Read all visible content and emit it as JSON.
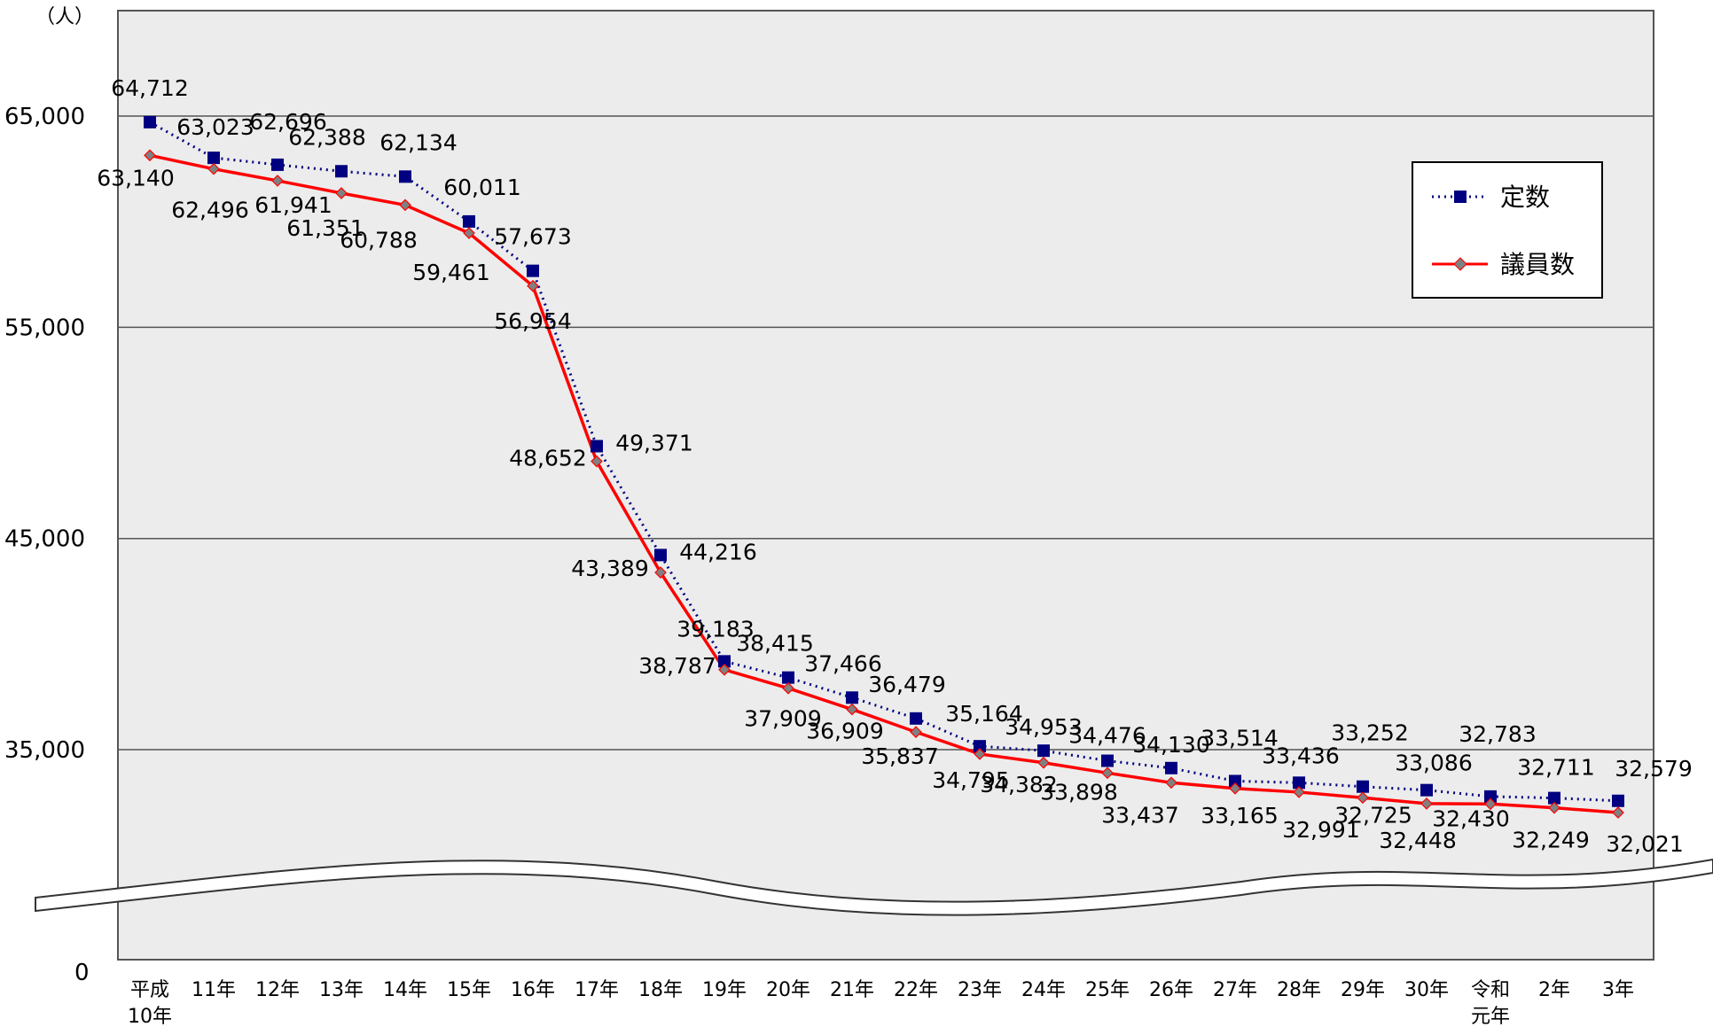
{
  "chart_data": {
    "type": "line",
    "unit_label": "（人）",
    "zero_label": "0",
    "y_ticks": [
      "65,000",
      "55,000",
      "45,000",
      "35,000"
    ],
    "ylim": [
      25000,
      70000
    ],
    "axis_break": true,
    "grid": true,
    "legend_position": "top-right",
    "categories": [
      [
        "平成",
        "10年"
      ],
      [
        "11年"
      ],
      [
        "12年"
      ],
      [
        "13年"
      ],
      [
        "14年"
      ],
      [
        "15年"
      ],
      [
        "16年"
      ],
      [
        "17年"
      ],
      [
        "18年"
      ],
      [
        "19年"
      ],
      [
        "20年"
      ],
      [
        "21年"
      ],
      [
        "22年"
      ],
      [
        "23年"
      ],
      [
        "24年"
      ],
      [
        "25年"
      ],
      [
        "26年"
      ],
      [
        "27年"
      ],
      [
        "28年"
      ],
      [
        "29年"
      ],
      [
        "30年"
      ],
      [
        "令和",
        "元年"
      ],
      [
        "2年"
      ],
      [
        "3年"
      ]
    ],
    "series": [
      {
        "name": "定数",
        "color": "#000080",
        "line_style": "dotted",
        "marker": "square",
        "values": [
          64712,
          63023,
          62696,
          62388,
          62134,
          60011,
          57673,
          49371,
          44216,
          39183,
          38415,
          37466,
          36479,
          35164,
          34953,
          34476,
          34130,
          33514,
          33436,
          33252,
          33086,
          32783,
          32711,
          32579
        ],
        "labels": [
          "64,712",
          "63,023",
          "62,696",
          "62,388",
          "62,134",
          "60,011",
          "57,673",
          "49,371",
          "44,216",
          "39,183",
          "38,415",
          "37,466",
          "36,479",
          "35,164",
          "34,953",
          "34,476",
          "34,130",
          "33,514",
          "33,436",
          "33,252",
          "33,086",
          "32,783",
          "32,711",
          "32,579"
        ]
      },
      {
        "name": "議員数",
        "color": "#ff0000",
        "line_style": "solid",
        "marker": "diamond",
        "values": [
          63140,
          62496,
          61941,
          61351,
          60788,
          59461,
          56954,
          48652,
          43389,
          38787,
          37909,
          36909,
          35837,
          34795,
          34382,
          33898,
          33437,
          33165,
          32991,
          32725,
          32448,
          32430,
          32249,
          32021
        ],
        "labels": [
          "63,140",
          "62,496",
          "61,941",
          "61,351",
          "60,788",
          "59,461",
          "56,954",
          "48,652",
          "43,389",
          "38,787",
          "37,909",
          "36,909",
          "35,837",
          "34,795",
          "34,382",
          "33,898",
          "33,437",
          "33,165",
          "32,991",
          "32,725",
          "32,448",
          "32,430",
          "32,249",
          "32,021"
        ]
      }
    ]
  }
}
